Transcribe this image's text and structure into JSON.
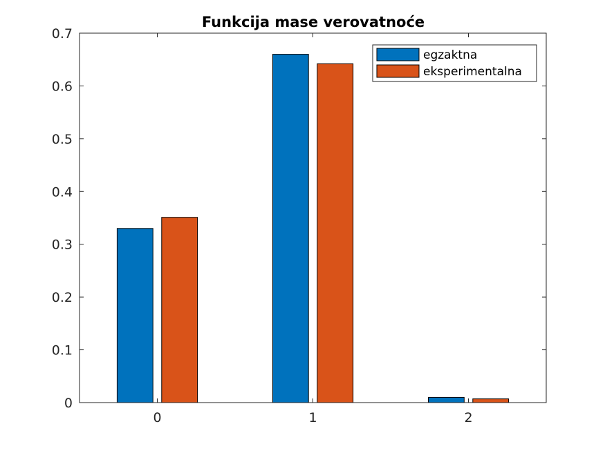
{
  "chart_data": {
    "type": "bar",
    "title": "Funkcija mase verovatnoće",
    "xlabel": "",
    "ylabel": "",
    "categories": [
      "0",
      "1",
      "2"
    ],
    "series": [
      {
        "name": "egzaktna",
        "values": [
          0.33,
          0.66,
          0.01
        ],
        "color": "#0072BD"
      },
      {
        "name": "eksperimentalna",
        "values": [
          0.351,
          0.642,
          0.007
        ],
        "color": "#D95319"
      }
    ],
    "ylim": [
      0,
      0.7
    ],
    "yticks": [
      "0",
      "0.1",
      "0.2",
      "0.3",
      "0.4",
      "0.5",
      "0.6",
      "0.7"
    ],
    "grid": false,
    "legend_position": "top-right",
    "axis_color": "#262626"
  }
}
